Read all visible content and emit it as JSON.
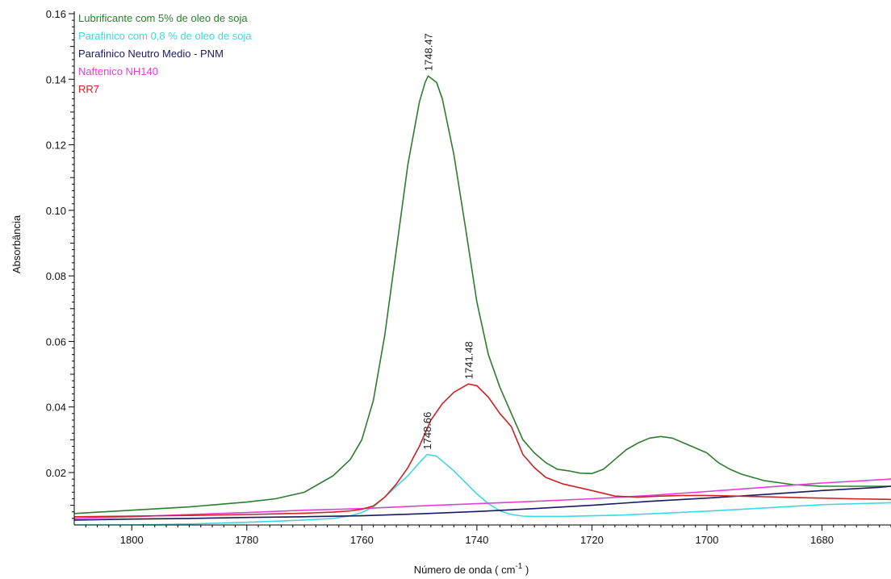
{
  "chart_data": {
    "type": "line",
    "xlabel": "Número de onda ( cm",
    "xlabel_sup": "-1",
    "xlabel_end": " )",
    "ylabel": "Absorbância",
    "xlim": [
      1810,
      1668
    ],
    "ylim": [
      0.004,
      0.16
    ],
    "x_reversed": true,
    "grid": false,
    "legend_position": "top-left",
    "x_ticks": [
      1800,
      1780,
      1760,
      1740,
      1720,
      1700,
      1680
    ],
    "y_ticks": [
      0.02,
      0.04,
      0.06,
      0.08,
      0.1,
      0.12,
      0.14,
      0.16
    ],
    "y_tick_labels": [
      "0.02",
      "0.04",
      "0.06",
      "0.08",
      "0.10",
      "0.12",
      "0.14",
      "0.16"
    ],
    "series": [
      {
        "name": "Lubrificante com 5% de oleo de soja",
        "color": "#2e7d2e",
        "x": [
          1810,
          1800,
          1790,
          1780,
          1775,
          1770,
          1765,
          1762,
          1760,
          1758,
          1756,
          1754,
          1752,
          1750,
          1749,
          1748.47,
          1747,
          1746,
          1744,
          1742,
          1740,
          1738,
          1736,
          1734,
          1732,
          1730,
          1728,
          1726,
          1724,
          1722,
          1720,
          1718,
          1716,
          1714,
          1712,
          1710,
          1708,
          1706,
          1704,
          1702,
          1700,
          1698,
          1696,
          1694,
          1692,
          1690,
          1685,
          1680,
          1675,
          1668
        ],
        "y": [
          0.0075,
          0.0085,
          0.0095,
          0.011,
          0.012,
          0.014,
          0.019,
          0.024,
          0.03,
          0.042,
          0.062,
          0.088,
          0.114,
          0.133,
          0.139,
          0.141,
          0.139,
          0.134,
          0.117,
          0.095,
          0.072,
          0.056,
          0.046,
          0.038,
          0.03,
          0.026,
          0.023,
          0.021,
          0.0205,
          0.0198,
          0.0197,
          0.021,
          0.024,
          0.027,
          0.029,
          0.0305,
          0.031,
          0.0305,
          0.029,
          0.0275,
          0.026,
          0.023,
          0.021,
          0.0195,
          0.0185,
          0.0175,
          0.0163,
          0.0158,
          0.0158,
          0.0158
        ]
      },
      {
        "name": "Parafinico com 0,8 % de oleo de soja",
        "color": "#3fd8e0",
        "x": [
          1810,
          1800,
          1790,
          1780,
          1770,
          1765,
          1762,
          1760,
          1758,
          1756,
          1754,
          1752,
          1750,
          1748.66,
          1747,
          1746,
          1744,
          1742,
          1740,
          1738,
          1736,
          1734,
          1732,
          1730,
          1728,
          1725,
          1720,
          1715,
          1710,
          1700,
          1690,
          1680,
          1668
        ],
        "y": [
          0.004,
          0.004,
          0.0043,
          0.0048,
          0.0055,
          0.006,
          0.0068,
          0.0078,
          0.0095,
          0.0125,
          0.0158,
          0.019,
          0.023,
          0.0255,
          0.025,
          0.0235,
          0.0205,
          0.017,
          0.0135,
          0.0105,
          0.0083,
          0.0072,
          0.0067,
          0.0066,
          0.0066,
          0.0066,
          0.0068,
          0.007,
          0.0074,
          0.0082,
          0.0092,
          0.0102,
          0.0108
        ]
      },
      {
        "name": "Parafinico Neutro Medio - PNM",
        "color": "#1a1a5e",
        "x": [
          1810,
          1800,
          1790,
          1780,
          1770,
          1760,
          1750,
          1740,
          1730,
          1720,
          1710,
          1700,
          1690,
          1680,
          1670,
          1668
        ],
        "y": [
          0.0055,
          0.0058,
          0.006,
          0.0063,
          0.0065,
          0.0068,
          0.0074,
          0.0081,
          0.009,
          0.01,
          0.0112,
          0.0122,
          0.0133,
          0.0145,
          0.0155,
          0.0158
        ]
      },
      {
        "name": "Naftenico NH140",
        "color": "#e040d8",
        "x": [
          1810,
          1800,
          1790,
          1780,
          1770,
          1760,
          1750,
          1740,
          1730,
          1720,
          1710,
          1700,
          1690,
          1680,
          1670,
          1668
        ],
        "y": [
          0.006,
          0.0065,
          0.0072,
          0.0078,
          0.0085,
          0.009,
          0.0098,
          0.0105,
          0.0112,
          0.012,
          0.013,
          0.0142,
          0.0155,
          0.0168,
          0.0178,
          0.018
        ]
      },
      {
        "name": "RR7",
        "color": "#cc2222",
        "x": [
          1810,
          1800,
          1790,
          1780,
          1770,
          1765,
          1762,
          1760,
          1758,
          1756,
          1754,
          1752,
          1750,
          1748,
          1746,
          1744,
          1742,
          1741.48,
          1740,
          1738,
          1736,
          1734,
          1732,
          1730,
          1728,
          1725,
          1720,
          1716,
          1712,
          1708,
          1704,
          1700,
          1695,
          1690,
          1685,
          1680,
          1675,
          1668
        ],
        "y": [
          0.0065,
          0.0067,
          0.0069,
          0.0072,
          0.0076,
          0.0079,
          0.0083,
          0.0088,
          0.0098,
          0.0125,
          0.0165,
          0.0215,
          0.028,
          0.036,
          0.041,
          0.0445,
          0.0465,
          0.047,
          0.0465,
          0.043,
          0.038,
          0.034,
          0.0255,
          0.0215,
          0.0185,
          0.0165,
          0.0145,
          0.0128,
          0.0125,
          0.0128,
          0.013,
          0.013,
          0.0128,
          0.0126,
          0.0124,
          0.0122,
          0.012,
          0.0118
        ]
      }
    ],
    "annotations": [
      {
        "text": "1748.47",
        "x": 1748.47,
        "y": 0.141
      },
      {
        "text": "1741.48",
        "x": 1741.48,
        "y": 0.047
      },
      {
        "text": "1748.66",
        "x": 1748.66,
        "y": 0.0255
      }
    ]
  }
}
